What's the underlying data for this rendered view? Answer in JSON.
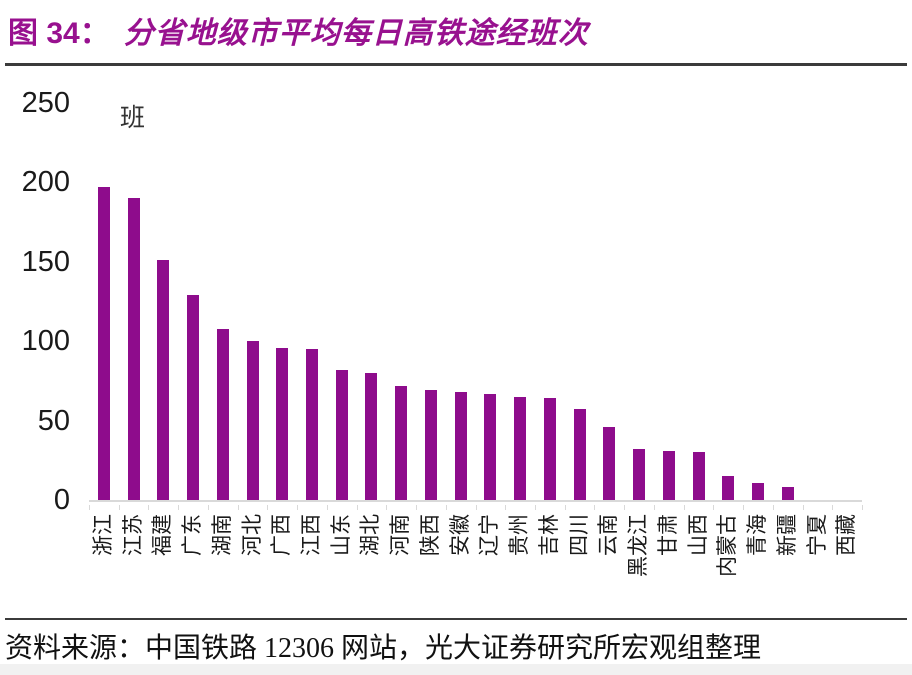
{
  "header": {
    "figure_label": "图 34：",
    "title": "分省地级市平均每日高铁途经班次"
  },
  "chart_data": {
    "type": "bar",
    "title": "分省地级市平均每日高铁途经班次",
    "unit_label": "班",
    "categories": [
      "浙江",
      "江苏",
      "福建",
      "广东",
      "湖南",
      "河北",
      "广西",
      "江西",
      "山东",
      "湖北",
      "河南",
      "陕西",
      "安徽",
      "辽宁",
      "贵州",
      "吉林",
      "四川",
      "云南",
      "黑龙江",
      "甘肃",
      "山西",
      "内蒙古",
      "青海",
      "新疆",
      "宁夏",
      "西藏"
    ],
    "values": [
      197,
      190,
      151,
      129,
      108,
      100,
      96,
      95,
      82,
      80,
      72,
      69,
      68,
      67,
      65,
      64,
      57,
      46,
      32,
      31,
      30,
      15,
      11,
      8,
      0,
      0
    ],
    "ylim": [
      0,
      250
    ],
    "yticks": [
      0,
      50,
      100,
      150,
      200,
      250
    ],
    "xlabel": "",
    "ylabel": "",
    "grid": false,
    "legend": "none",
    "bar_color": "#8E0C8C"
  },
  "footer": {
    "source_text": "资料来源：中国铁路 12306 网站，光大证券研究所宏观组整理"
  },
  "colors": {
    "title_color": "#98118F",
    "bar_color": "#8E0C8C",
    "axis_color": "#D9D9D9",
    "rule_color": "#3B3B3B",
    "text_color": "#1A1A1A"
  }
}
